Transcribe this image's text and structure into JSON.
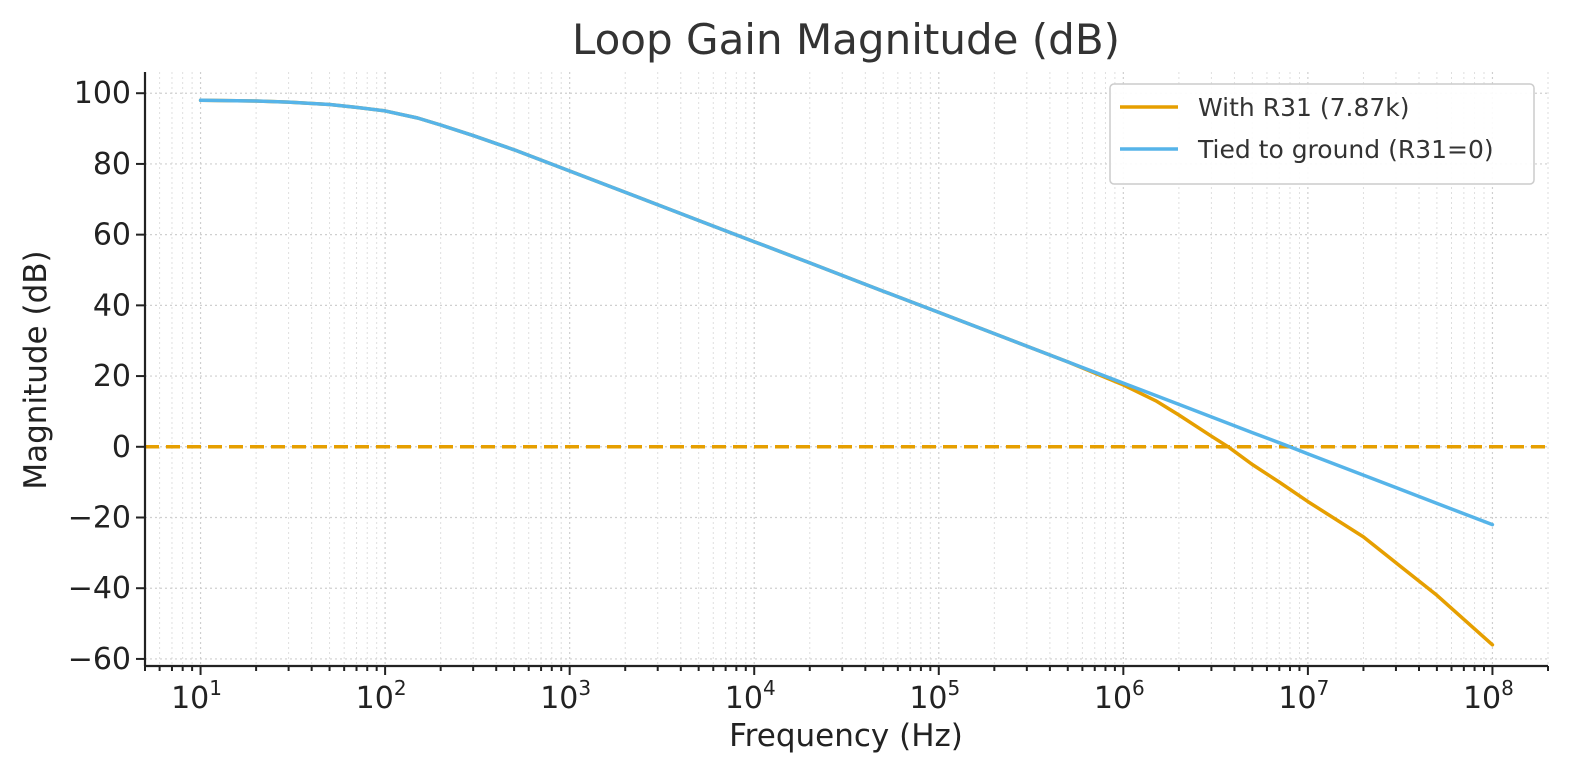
{
  "chart_data": {
    "type": "line",
    "title": "Loop Gain Magnitude (dB)",
    "xlabel": "Frequency (Hz)",
    "ylabel": "Magnitude (dB)",
    "xscale": "log",
    "xlim": [
      5,
      200000000
    ],
    "ylim": [
      -62,
      106
    ],
    "xticks": [
      {
        "value": 10,
        "base": "10",
        "exp": "1"
      },
      {
        "value": 100,
        "base": "10",
        "exp": "2"
      },
      {
        "value": 1000,
        "base": "10",
        "exp": "3"
      },
      {
        "value": 10000,
        "base": "10",
        "exp": "4"
      },
      {
        "value": 100000,
        "base": "10",
        "exp": "5"
      },
      {
        "value": 1000000,
        "base": "10",
        "exp": "6"
      },
      {
        "value": 10000000,
        "base": "10",
        "exp": "7"
      },
      {
        "value": 100000000,
        "base": "10",
        "exp": "8"
      }
    ],
    "yticks": [
      {
        "value": 100,
        "label": "100"
      },
      {
        "value": 80,
        "label": "80"
      },
      {
        "value": 60,
        "label": "60"
      },
      {
        "value": 40,
        "label": "40"
      },
      {
        "value": 20,
        "label": "20"
      },
      {
        "value": 0,
        "label": "0"
      },
      {
        "value": -20,
        "label": "−20"
      },
      {
        "value": -40,
        "label": "−40"
      },
      {
        "value": -60,
        "label": "−60"
      }
    ],
    "grid": true,
    "legend_position": "top-right",
    "reference_line": {
      "y": 0,
      "style": "dashed",
      "color": "#E69F00"
    },
    "series": [
      {
        "name": "With R31 (7.87k)",
        "color": "#E69F00",
        "points": [
          [
            10,
            98
          ],
          [
            20,
            97.8
          ],
          [
            30,
            97.5
          ],
          [
            50,
            96.8
          ],
          [
            70,
            96
          ],
          [
            100,
            95
          ],
          [
            150,
            93
          ],
          [
            200,
            91
          ],
          [
            300,
            88
          ],
          [
            500,
            84
          ],
          [
            1000,
            78
          ],
          [
            2000,
            72
          ],
          [
            5000,
            64
          ],
          [
            10000,
            58
          ],
          [
            20000,
            52
          ],
          [
            50000,
            44
          ],
          [
            100000,
            38
          ],
          [
            200000,
            32
          ],
          [
            500000,
            24
          ],
          [
            1000000,
            17.5
          ],
          [
            1500000,
            13
          ],
          [
            2000000,
            9
          ],
          [
            3000000,
            3
          ],
          [
            3700000,
            0
          ],
          [
            5000000,
            -5
          ],
          [
            7000000,
            -10
          ],
          [
            10000000,
            -15.5
          ],
          [
            20000000,
            -25.5
          ],
          [
            50000000,
            -42
          ],
          [
            100000000,
            -56
          ]
        ]
      },
      {
        "name": "Tied to ground (R31=0)",
        "color": "#56B4E9",
        "points": [
          [
            10,
            98
          ],
          [
            20,
            97.8
          ],
          [
            30,
            97.5
          ],
          [
            50,
            96.8
          ],
          [
            70,
            96
          ],
          [
            100,
            95
          ],
          [
            150,
            93
          ],
          [
            200,
            91
          ],
          [
            300,
            88
          ],
          [
            500,
            84
          ],
          [
            1000,
            78
          ],
          [
            2000,
            72
          ],
          [
            5000,
            64
          ],
          [
            10000,
            58
          ],
          [
            20000,
            52
          ],
          [
            50000,
            44
          ],
          [
            100000,
            38
          ],
          [
            200000,
            32
          ],
          [
            500000,
            24
          ],
          [
            1000000,
            18
          ],
          [
            2000000,
            12
          ],
          [
            5000000,
            4
          ],
          [
            8000000,
            0
          ],
          [
            10000000,
            -2
          ],
          [
            20000000,
            -8
          ],
          [
            50000000,
            -16
          ],
          [
            100000000,
            -22
          ]
        ]
      }
    ]
  }
}
